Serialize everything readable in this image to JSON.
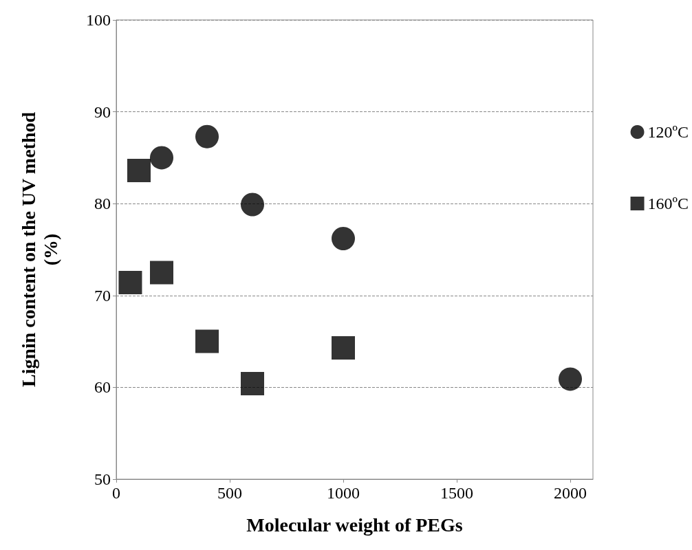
{
  "chart_data": {
    "type": "scatter",
    "xlabel": "Molecular weight of PEGs",
    "ylabel": "Lignin content on the UV method\n(%)",
    "xlim": [
      0,
      2100
    ],
    "xticks": [
      0,
      500,
      1000,
      1500,
      2000
    ],
    "ylim": [
      50,
      100
    ],
    "yticks": [
      50,
      60,
      70,
      80,
      90,
      100
    ],
    "grid": "y",
    "legend": "right",
    "series": [
      {
        "name": "120ºC",
        "color": "#000000",
        "marker": "circle",
        "x": [
          200,
          400,
          600,
          1000,
          2000
        ],
        "values": [
          85.0,
          87.3,
          79.9,
          76.2,
          60.9
        ]
      },
      {
        "name": "160ºC",
        "color": "#000000",
        "marker": "square",
        "x": [
          62,
          100,
          200,
          400,
          600,
          1000
        ],
        "values": [
          71.4,
          83.6,
          72.5,
          65.0,
          60.4,
          64.3
        ]
      }
    ]
  }
}
